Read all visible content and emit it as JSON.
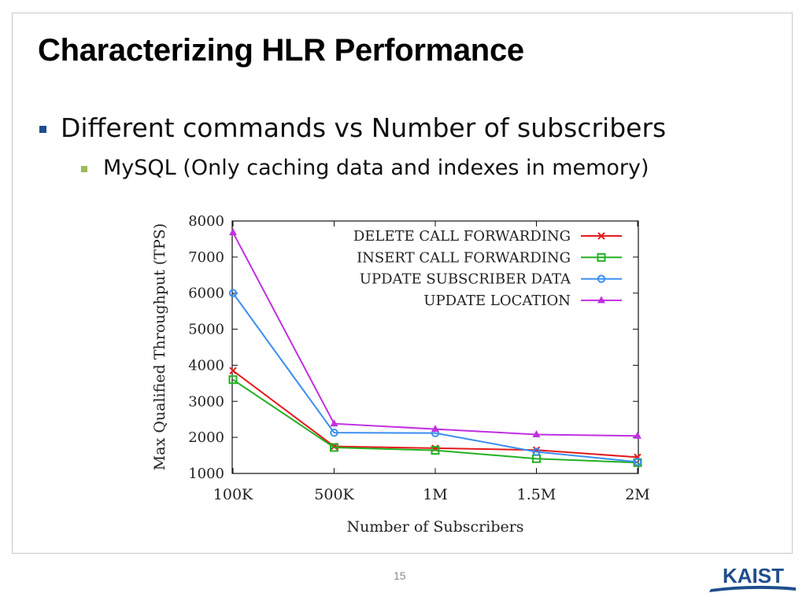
{
  "slide": {
    "title": "Characterizing HLR Performance",
    "bullet_1": "Different commands vs Number of subscribers",
    "bullet_2": "MySQL (Only caching data and indexes in memory)",
    "page_number": "15",
    "logo_text": "KAIST"
  },
  "colors": {
    "title": "#000000",
    "bullet_1_marker": "#1f4e8c",
    "bullet_2_marker": "#9bbb59",
    "logo": "#1f4e8c"
  },
  "chart_data": {
    "type": "line",
    "title": "",
    "xlabel": "Number of Subscribers",
    "ylabel": "Max Qualified Throughput (TPS)",
    "categories": [
      "100K",
      "500K",
      "1M",
      "1.5M",
      "2M"
    ],
    "ylim": [
      1000,
      8000
    ],
    "yticks": [
      "1000",
      "2000",
      "3000",
      "4000",
      "5000",
      "6000",
      "7000",
      "8000"
    ],
    "legend_position": "top-right",
    "grid": false,
    "series": [
      {
        "name": "DELETE CALL FORWARDING",
        "color": "#e41a1c",
        "marker": "x",
        "values": [
          3850,
          1750,
          1700,
          1650,
          1450
        ]
      },
      {
        "name": "INSERT CALL FORWARDING",
        "color": "#22b022",
        "marker": "square",
        "values": [
          3600,
          1720,
          1640,
          1410,
          1300
        ]
      },
      {
        "name": "UPDATE SUBSCRIBER DATA",
        "color": "#3a8ef0",
        "marker": "circle",
        "values": [
          6000,
          2130,
          2120,
          1600,
          1320
        ]
      },
      {
        "name": "UPDATE LOCATION",
        "color": "#c12fe0",
        "marker": "triangle",
        "values": [
          7680,
          2380,
          2230,
          2080,
          2040
        ]
      }
    ]
  }
}
